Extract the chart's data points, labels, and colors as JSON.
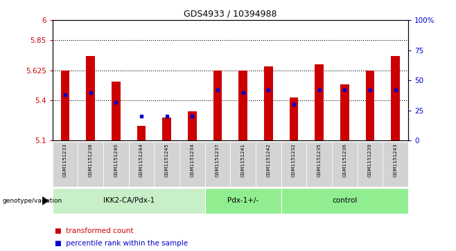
{
  "title": "GDS4933 / 10394988",
  "samples": [
    "GSM1151233",
    "GSM1151238",
    "GSM1151240",
    "GSM1151244",
    "GSM1151245",
    "GSM1151234",
    "GSM1151237",
    "GSM1151241",
    "GSM1151242",
    "GSM1151232",
    "GSM1151235",
    "GSM1151236",
    "GSM1151239",
    "GSM1151243"
  ],
  "bar_values": [
    5.625,
    5.73,
    5.54,
    5.21,
    5.27,
    5.32,
    5.625,
    5.625,
    5.655,
    5.42,
    5.67,
    5.52,
    5.625,
    5.73
  ],
  "percentile_values": [
    38,
    40,
    32,
    20,
    20,
    20,
    42,
    40,
    42,
    30,
    42,
    42,
    42,
    42
  ],
  "y_min": 5.1,
  "y_max": 6.0,
  "left_ticks": [
    5.1,
    5.4,
    5.625,
    5.85,
    6.0
  ],
  "left_tick_labels": [
    "5.1",
    "5.4",
    "5.625",
    "5.85",
    "6"
  ],
  "right_ticks": [
    0,
    25,
    50,
    75,
    100
  ],
  "right_tick_labels": [
    "0",
    "25",
    "50",
    "75",
    "100%"
  ],
  "group_info": [
    {
      "label": "IKK2-CA/Pdx-1",
      "start": 0,
      "end": 5,
      "color": "#c8efc8"
    },
    {
      "label": "Pdx-1+/-",
      "start": 6,
      "end": 8,
      "color": "#90ee90"
    },
    {
      "label": "control",
      "start": 9,
      "end": 13,
      "color": "#90ee90"
    }
  ],
  "bar_color": "#cc0000",
  "dot_color": "#0000cc",
  "left_tick_color": "#cc0000",
  "right_tick_color": "#0000cc",
  "sample_bg_color": "#d3d3d3",
  "grid_color": "black",
  "legend_red_label": "transformed count",
  "legend_blue_label": "percentile rank within the sample",
  "genotype_label": "genotype/variation"
}
